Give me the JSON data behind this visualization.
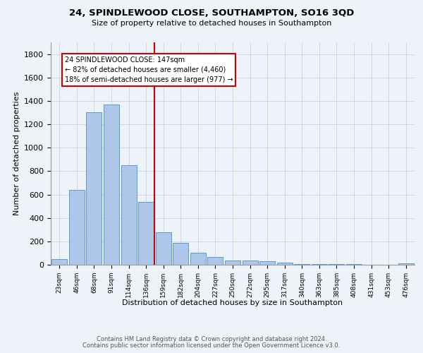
{
  "title": "24, SPINDLEWOOD CLOSE, SOUTHAMPTON, SO16 3QD",
  "subtitle": "Size of property relative to detached houses in Southampton",
  "xlabel": "Distribution of detached houses by size in Southampton",
  "ylabel": "Number of detached properties",
  "bar_color": "#aec6e8",
  "bar_edge_color": "#5b9bd5",
  "vline_color": "#cc0000",
  "vline_x": 5.5,
  "annotation_title": "24 SPINDLEWOOD CLOSE: 147sqm",
  "annotation_line1": "← 82% of detached houses are smaller (4,460)",
  "annotation_line2": "18% of semi-detached houses are larger (977) →",
  "annotation_box_color": "#ffffff",
  "annotation_box_edge": "#cc0000",
  "categories": [
    "23sqm",
    "46sqm",
    "68sqm",
    "91sqm",
    "114sqm",
    "136sqm",
    "159sqm",
    "182sqm",
    "204sqm",
    "227sqm",
    "250sqm",
    "272sqm",
    "295sqm",
    "317sqm",
    "340sqm",
    "363sqm",
    "385sqm",
    "408sqm",
    "431sqm",
    "453sqm",
    "476sqm"
  ],
  "values": [
    50,
    638,
    1305,
    1370,
    848,
    535,
    275,
    185,
    103,
    65,
    38,
    35,
    28,
    18,
    5,
    5,
    5,
    5,
    0,
    0,
    12
  ],
  "ylim": [
    0,
    1900
  ],
  "yticks": [
    0,
    200,
    400,
    600,
    800,
    1000,
    1200,
    1400,
    1600,
    1800
  ],
  "background_color": "#eef2f9",
  "grid_color": "#c8d4e8",
  "footer1": "Contains HM Land Registry data © Crown copyright and database right 2024.",
  "footer2": "Contains public sector information licensed under the Open Government Licence v3.0."
}
